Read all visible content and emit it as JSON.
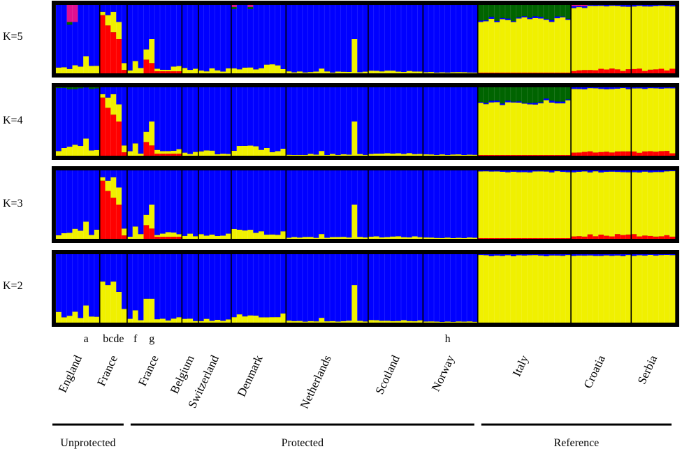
{
  "chart_data": {
    "type": "bar",
    "subtype": "stacked-admixture (STRUCTURE plot)",
    "panels": [
      {
        "label": "K=5"
      },
      {
        "label": "K=4"
      },
      {
        "label": "K=3"
      },
      {
        "label": "K=2"
      }
    ],
    "populations": [
      {
        "name": "England",
        "n": 8,
        "group": "Unprotected"
      },
      {
        "name": "France",
        "n": 5,
        "group": "Unprotected"
      },
      {
        "name": "France",
        "n": 10,
        "group": "Protected"
      },
      {
        "name": "Belgium",
        "n": 3,
        "group": "Protected"
      },
      {
        "name": "Switzerland",
        "n": 6,
        "group": "Protected"
      },
      {
        "name": "Denmark",
        "n": 10,
        "group": "Protected"
      },
      {
        "name": "Netherlands",
        "n": 15,
        "group": "Protected"
      },
      {
        "name": "Scotland",
        "n": 10,
        "group": "Protected"
      },
      {
        "name": "Norway",
        "n": 10,
        "group": "Protected"
      },
      {
        "name": "Italy",
        "n": 17,
        "group": "Reference"
      },
      {
        "name": "Croatia",
        "n": 11,
        "group": "Reference"
      },
      {
        "name": "Serbia",
        "n": 8,
        "group": "Reference"
      }
    ],
    "groups": [
      {
        "name": "Unprotected"
      },
      {
        "name": "Protected"
      },
      {
        "name": "Reference"
      }
    ],
    "annotations": [
      {
        "text": "a",
        "individual": 5
      },
      {
        "text": "bcde",
        "individual": 10
      },
      {
        "text": "f",
        "individual": 14
      },
      {
        "text": "g",
        "individual": 17
      },
      {
        "text": "h",
        "individual": 71
      }
    ],
    "cluster_colors": [
      "#0000ff",
      "#f0f000",
      "#ff0000",
      "#006400",
      "#e01090"
    ],
    "ylim": [
      0,
      1
    ],
    "individual_proportions_approx": {
      "note_order": "per individual, order: blue, yellow, red, green, magenta",
      "England": [
        0.9,
        0.1,
        0,
        0,
        0
      ],
      "France_unprotected": [
        0.15,
        0.3,
        0.55,
        0,
        0
      ],
      "Protected_typical": [
        0.95,
        0.05,
        0,
        0,
        0
      ],
      "Netherlands_h": [
        0.45,
        0.55,
        0,
        0,
        0
      ],
      "Italy_K5": [
        0.02,
        0.78,
        0.01,
        0.19,
        0
      ],
      "Croatia_Serbia_K5": [
        0.01,
        0.94,
        0.05,
        0,
        0
      ]
    }
  }
}
